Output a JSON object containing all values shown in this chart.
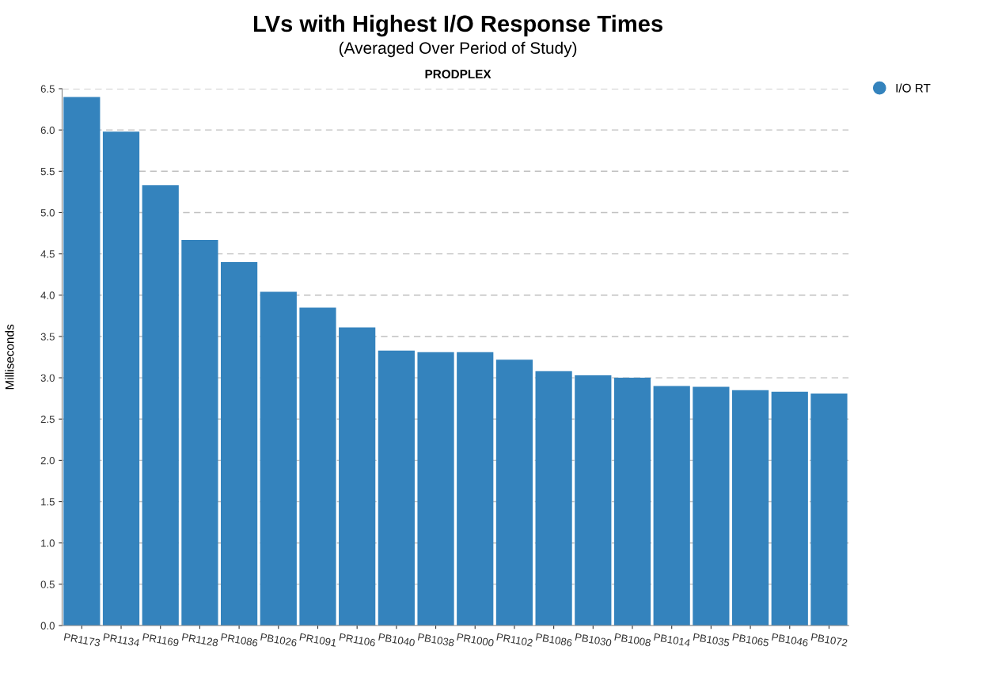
{
  "chart_data": {
    "type": "bar",
    "title": "LVs with Highest I/O Response Times",
    "subtitle": "(Averaged Over Period of Study)",
    "annotations": [
      "PRODPLEX"
    ],
    "ylabel": "Milliseconds",
    "categories": [
      "PR1173",
      "PR1134",
      "PR1169",
      "PR1128",
      "PR1086",
      "PB1026",
      "PR1091",
      "PR1106",
      "PB1040",
      "PB1038",
      "PR1000",
      "PR1102",
      "PB1086",
      "PB1030",
      "PB1008",
      "PB1014",
      "PB1035",
      "PB1065",
      "PB1046",
      "PB1072"
    ],
    "series": [
      {
        "name": "I/O RT",
        "color": "#3483bd",
        "values": [
          6.4,
          5.98,
          5.33,
          4.67,
          4.4,
          4.04,
          3.85,
          3.61,
          3.33,
          3.31,
          3.31,
          3.22,
          3.08,
          3.03,
          3.0,
          2.9,
          2.89,
          2.85,
          2.83,
          2.81
        ]
      }
    ],
    "ylim": [
      0,
      6.5
    ],
    "yticks": [
      {
        "value": 0,
        "label": "0.0"
      },
      {
        "value": 0.5,
        "label": "0.5"
      },
      {
        "value": 1,
        "label": "1.0"
      },
      {
        "value": 1.5,
        "label": "1.5"
      },
      {
        "value": 2,
        "label": "2.0"
      },
      {
        "value": 2.5,
        "label": "2.5"
      },
      {
        "value": 3,
        "label": "3.0"
      },
      {
        "value": 3.5,
        "label": "3.5"
      },
      {
        "value": 4,
        "label": "4.0"
      },
      {
        "value": 4.5,
        "label": "4.5"
      },
      {
        "value": 5,
        "label": "5.0"
      },
      {
        "value": 5.5,
        "label": "5.5"
      },
      {
        "value": 6,
        "label": "6.0"
      },
      {
        "value": 6.5,
        "label": "6.5"
      }
    ],
    "grid": "y",
    "legend": "top right",
    "marker": "circle"
  }
}
